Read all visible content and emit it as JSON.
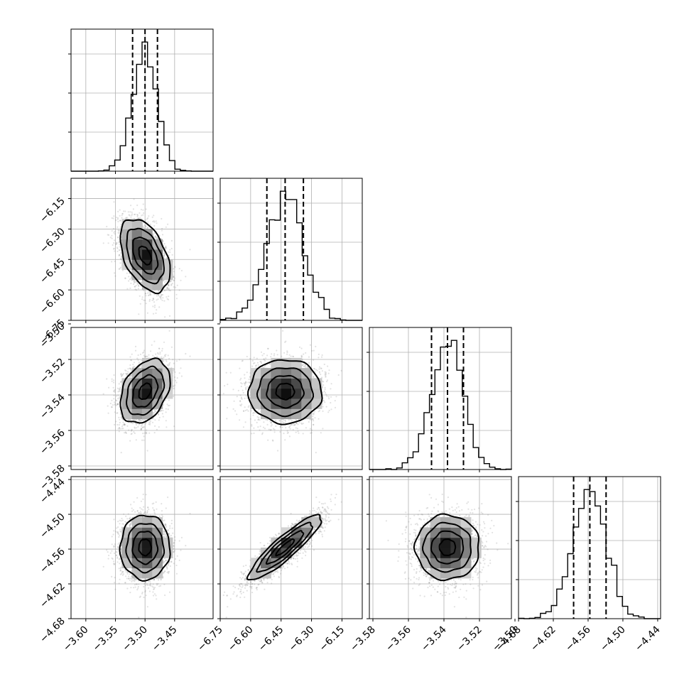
{
  "chart_data": {
    "type": "corner",
    "title": "",
    "grid": true,
    "colors": {
      "line": "#000000",
      "grid": "#b0b0b0",
      "scatter": "#7a7a7a",
      "density_dark": "#000000",
      "density_light": "#f2f2f2"
    },
    "parameters": [
      {
        "name": "",
        "range": [
          -3.625,
          -3.385
        ],
        "ticks": [
          -3.6,
          -3.55,
          -3.5,
          -3.45
        ],
        "tick_labels": [
          "−3.60",
          "−3.55",
          "−3.50",
          "−3.45"
        ],
        "quantiles": [
          -3.521,
          -3.5,
          -3.479
        ],
        "mean": -3.5,
        "sd": 0.021
      },
      {
        "name": "",
        "range": [
          -6.75,
          -6.05
        ],
        "ticks": [
          -6.75,
          -6.6,
          -6.45,
          -6.3,
          -6.15
        ],
        "tick_labels": [
          "−6.75",
          "−6.60",
          "−6.45",
          "−6.30",
          "−6.15"
        ],
        "quantiles": [
          -6.52,
          -6.43,
          -6.34
        ],
        "mean": -6.43,
        "sd": 0.09
      },
      {
        "name": "",
        "range": [
          -3.582,
          -3.502
        ],
        "ticks": [
          -3.58,
          -3.56,
          -3.54,
          -3.52,
          -3.5
        ],
        "tick_labels": [
          "−3.58",
          "−3.56",
          "−3.54",
          "−3.52",
          "−3.50"
        ],
        "quantiles": [
          -3.547,
          -3.538,
          -3.529
        ],
        "mean": -3.538,
        "sd": 0.009
      },
      {
        "name": "",
        "range": [
          -4.68,
          -4.435
        ],
        "ticks": [
          -4.68,
          -4.62,
          -4.56,
          -4.5,
          -4.44
        ],
        "tick_labels": [
          "−4.68",
          "−4.62",
          "−4.56",
          "−4.50",
          "−4.44"
        ],
        "quantiles": [
          -4.585,
          -4.557,
          -4.529
        ],
        "mean": -4.557,
        "sd": 0.028
      }
    ],
    "correlations": [
      [
        1.0,
        -0.45,
        0.35,
        0.0
      ],
      [
        -0.45,
        1.0,
        0.0,
        0.9
      ],
      [
        0.35,
        0.0,
        1.0,
        0.0
      ],
      [
        0.0,
        0.9,
        0.0,
        1.0
      ]
    ],
    "contour_levels_sigma": [
      0.5,
      1.0,
      1.5,
      2.0
    ],
    "n_samples_shown": 2400,
    "hist_bins": 26
  }
}
